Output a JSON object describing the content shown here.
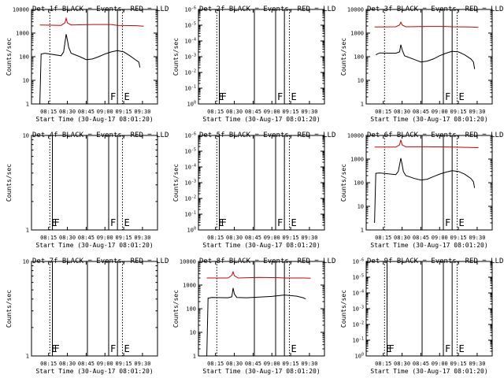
{
  "figure": {
    "x_range": [
      "08:01:20",
      "09:42:00"
    ],
    "x_ticks": [
      "08:15",
      "08:30",
      "08:45",
      "09:00",
      "09:15",
      "09:30"
    ],
    "xlabel": "Start Time (30-Aug-17 08:01:20)",
    "ylabel": "Counts/sec",
    "colors": {
      "events": "#000000",
      "lld": "#cc0000"
    }
  },
  "chart_data": [
    {
      "type": "line",
      "title": "Det 1f BLACK = Events, RED = LLD",
      "scale": "log",
      "ylim": [
        1,
        10000
      ],
      "y_ticks": [
        "1",
        "10",
        "100",
        "1000",
        "10000"
      ],
      "markers": [
        {
          "time": "08:16",
          "style": "dotted",
          "label": ""
        },
        {
          "time": "08:46",
          "style": "solid",
          "label": ""
        },
        {
          "time": "09:03",
          "style": "solid",
          "label": "F"
        },
        {
          "time": "09:10",
          "style": "solid",
          "label": ""
        },
        {
          "time": "09:14",
          "style": "dotted",
          "label": "E"
        }
      ],
      "series": [
        {
          "color": "lld",
          "points": [
            [
              "08:08",
              2200
            ],
            [
              "08:25",
              2100
            ],
            [
              "08:28",
              2700
            ],
            [
              "08:29",
              4200
            ],
            [
              "08:30",
              2700
            ],
            [
              "08:33",
              2200
            ],
            [
              "08:50",
              2300
            ],
            [
              "09:05",
              2300
            ],
            [
              "09:10",
              2100
            ],
            [
              "09:25",
              2050
            ],
            [
              "09:31",
              1950
            ]
          ]
        },
        {
          "color": "events",
          "points": [
            [
              "08:08",
              1
            ],
            [
              "08:09",
              130
            ],
            [
              "08:12",
              140
            ],
            [
              "08:25",
              110
            ],
            [
              "08:27",
              160
            ],
            [
              "08:29",
              900
            ],
            [
              "08:30",
              500
            ],
            [
              "08:31",
              250
            ],
            [
              "08:33",
              140
            ],
            [
              "08:40",
              100
            ],
            [
              "08:45",
              75
            ],
            [
              "08:50",
              80
            ],
            [
              "08:55",
              100
            ],
            [
              "09:00",
              130
            ],
            [
              "09:05",
              160
            ],
            [
              "09:10",
              180
            ],
            [
              "09:15",
              160
            ],
            [
              "09:20",
              110
            ],
            [
              "09:25",
              70
            ],
            [
              "09:27",
              60
            ],
            [
              "09:28",
              35
            ]
          ]
        }
      ]
    },
    {
      "type": "line",
      "title": "Det 2f BLACK = Events, RED = LLD",
      "scale": "log",
      "ylim": [
        1,
        1e-06
      ],
      "y_ticks": [
        "10^0",
        "10^-1",
        "10^-2",
        "10^-3",
        "10^-4",
        "10^-5",
        "10^-6"
      ],
      "markers": [
        {
          "time": "08:16",
          "style": "dotted",
          "label": "E"
        },
        {
          "time": "08:18",
          "style": "solid",
          "label": "F"
        },
        {
          "time": "08:46",
          "style": "solid",
          "label": ""
        },
        {
          "time": "09:03",
          "style": "solid",
          "label": "F"
        },
        {
          "time": "09:10",
          "style": "solid",
          "label": ""
        },
        {
          "time": "09:14",
          "style": "dotted",
          "label": "E"
        }
      ],
      "series": []
    },
    {
      "type": "line",
      "title": "Det 3f BLACK = Events, RED = LLD",
      "scale": "log",
      "ylim": [
        1,
        10000
      ],
      "y_ticks": [
        "1",
        "10",
        "100",
        "1000",
        "10000"
      ],
      "markers": [
        {
          "time": "08:16",
          "style": "dotted",
          "label": ""
        },
        {
          "time": "08:46",
          "style": "solid",
          "label": ""
        },
        {
          "time": "09:03",
          "style": "solid",
          "label": "F"
        },
        {
          "time": "09:10",
          "style": "solid",
          "label": ""
        },
        {
          "time": "09:14",
          "style": "dotted",
          "label": "E"
        }
      ],
      "series": [
        {
          "color": "lld",
          "points": [
            [
              "08:08",
              1800
            ],
            [
              "08:25",
              1850
            ],
            [
              "08:28",
              2200
            ],
            [
              "08:29",
              2900
            ],
            [
              "08:30",
              2200
            ],
            [
              "08:33",
              1850
            ],
            [
              "08:50",
              1900
            ],
            [
              "09:05",
              1900
            ],
            [
              "09:10",
              1850
            ],
            [
              "09:25",
              1800
            ],
            [
              "09:31",
              1750
            ]
          ]
        },
        {
          "color": "events",
          "points": [
            [
              "08:09",
              120
            ],
            [
              "08:12",
              145
            ],
            [
              "08:25",
              140
            ],
            [
              "08:28",
              160
            ],
            [
              "08:29",
              320
            ],
            [
              "08:30",
              200
            ],
            [
              "08:32",
              110
            ],
            [
              "08:40",
              75
            ],
            [
              "08:45",
              60
            ],
            [
              "08:50",
              65
            ],
            [
              "08:55",
              80
            ],
            [
              "09:00",
              110
            ],
            [
              "09:05",
              140
            ],
            [
              "09:10",
              170
            ],
            [
              "09:15",
              160
            ],
            [
              "09:20",
              120
            ],
            [
              "09:25",
              80
            ],
            [
              "09:27",
              60
            ],
            [
              "09:28",
              30
            ]
          ]
        }
      ]
    },
    {
      "type": "line",
      "title": "Det 4f BLACK = Events, RED = LLD",
      "scale": "log",
      "ylim": [
        1,
        10
      ],
      "y_ticks": [
        "1",
        "10"
      ],
      "markers": [
        {
          "time": "08:16",
          "style": "dotted",
          "label": "E"
        },
        {
          "time": "08:18",
          "style": "solid",
          "label": "F"
        },
        {
          "time": "08:46",
          "style": "solid",
          "label": ""
        },
        {
          "time": "09:03",
          "style": "solid",
          "label": "F"
        },
        {
          "time": "09:10",
          "style": "solid",
          "label": ""
        },
        {
          "time": "09:14",
          "style": "dotted",
          "label": "E"
        }
      ],
      "series": []
    },
    {
      "type": "line",
      "title": "Det 5f BLACK = Events, RED = LLD",
      "scale": "log",
      "ylim": [
        1,
        1e-06
      ],
      "y_ticks": [
        "10^0",
        "10^-1",
        "10^-2",
        "10^-3",
        "10^-4",
        "10^-5",
        "10^-6"
      ],
      "markers": [
        {
          "time": "08:16",
          "style": "dotted",
          "label": "E"
        },
        {
          "time": "08:18",
          "style": "solid",
          "label": "F"
        },
        {
          "time": "08:46",
          "style": "solid",
          "label": ""
        },
        {
          "time": "09:03",
          "style": "solid",
          "label": "F"
        },
        {
          "time": "09:10",
          "style": "solid",
          "label": ""
        },
        {
          "time": "09:14",
          "style": "dotted",
          "label": "E"
        }
      ],
      "series": []
    },
    {
      "type": "line",
      "title": "Det 6f BLACK = Events, RED = LLD",
      "scale": "log",
      "ylim": [
        1,
        10000
      ],
      "y_ticks": [
        "1",
        "10",
        "100",
        "1000",
        "10000"
      ],
      "markers": [
        {
          "time": "08:16",
          "style": "dotted",
          "label": ""
        },
        {
          "time": "08:46",
          "style": "solid",
          "label": ""
        },
        {
          "time": "09:03",
          "style": "solid",
          "label": "F"
        },
        {
          "time": "09:10",
          "style": "solid",
          "label": ""
        },
        {
          "time": "09:14",
          "style": "dotted",
          "label": "E"
        }
      ],
      "series": [
        {
          "color": "lld",
          "points": [
            [
              "08:08",
              3200
            ],
            [
              "08:25",
              3200
            ],
            [
              "08:28",
              4000
            ],
            [
              "08:29",
              6500
            ],
            [
              "08:30",
              4000
            ],
            [
              "08:33",
              3300
            ],
            [
              "08:50",
              3300
            ],
            [
              "09:05",
              3250
            ],
            [
              "09:10",
              3200
            ],
            [
              "09:25",
              3100
            ],
            [
              "09:31",
              3050
            ]
          ]
        },
        {
          "color": "events",
          "points": [
            [
              "08:08",
              2
            ],
            [
              "08:09",
              250
            ],
            [
              "08:12",
              260
            ],
            [
              "08:25",
              220
            ],
            [
              "08:27",
              300
            ],
            [
              "08:29",
              1100
            ],
            [
              "08:30",
              600
            ],
            [
              "08:31",
              300
            ],
            [
              "08:33",
              200
            ],
            [
              "08:40",
              150
            ],
            [
              "08:45",
              130
            ],
            [
              "08:50",
              140
            ],
            [
              "08:55",
              180
            ],
            [
              "09:00",
              230
            ],
            [
              "09:05",
              280
            ],
            [
              "09:10",
              320
            ],
            [
              "09:15",
              300
            ],
            [
              "09:20",
              230
            ],
            [
              "09:25",
              150
            ],
            [
              "09:27",
              110
            ],
            [
              "09:28",
              60
            ]
          ]
        }
      ]
    },
    {
      "type": "line",
      "title": "Det 7f BLACK = Events, RED = LLD",
      "scale": "log",
      "ylim": [
        1,
        10
      ],
      "y_ticks": [
        "1",
        "10"
      ],
      "markers": [
        {
          "time": "08:16",
          "style": "dotted",
          "label": "E"
        },
        {
          "time": "08:18",
          "style": "solid",
          "label": "F"
        },
        {
          "time": "08:46",
          "style": "solid",
          "label": ""
        },
        {
          "time": "09:03",
          "style": "solid",
          "label": "F"
        },
        {
          "time": "09:10",
          "style": "solid",
          "label": ""
        },
        {
          "time": "09:14",
          "style": "dotted",
          "label": "E"
        }
      ],
      "series": []
    },
    {
      "type": "line",
      "title": "Det 8f BLACK = Events, RED = LLD",
      "scale": "log",
      "ylim": [
        1,
        10000
      ],
      "y_ticks": [
        "1",
        "10",
        "100",
        "1000",
        "10000"
      ],
      "markers": [
        {
          "time": "08:16",
          "style": "dotted",
          "label": ""
        },
        {
          "time": "08:46",
          "style": "solid",
          "label": ""
        },
        {
          "time": "09:03",
          "style": "solid",
          "label": ""
        },
        {
          "time": "09:10",
          "style": "solid",
          "label": ""
        },
        {
          "time": "09:14",
          "style": "dotted",
          "label": "E"
        }
      ],
      "series": [
        {
          "color": "lld",
          "points": [
            [
              "08:08",
              2000
            ],
            [
              "08:25",
              2000
            ],
            [
              "08:28",
              2600
            ],
            [
              "08:29",
              3600
            ],
            [
              "08:30",
              2500
            ],
            [
              "08:33",
              2000
            ],
            [
              "08:50",
              2100
            ],
            [
              "09:05",
              2050
            ],
            [
              "09:10",
              2000
            ],
            [
              "09:25",
              2000
            ],
            [
              "09:31",
              1950
            ]
          ]
        },
        {
          "color": "events",
          "points": [
            [
              "08:08",
              1
            ],
            [
              "08:09",
              280
            ],
            [
              "08:12",
              300
            ],
            [
              "08:25",
              290
            ],
            [
              "08:28",
              320
            ],
            [
              "08:29",
              750
            ],
            [
              "08:30",
              420
            ],
            [
              "08:32",
              300
            ],
            [
              "08:40",
              290
            ],
            [
              "08:50",
              310
            ],
            [
              "09:00",
              330
            ],
            [
              "09:10",
              380
            ],
            [
              "09:20",
              340
            ],
            [
              "09:25",
              290
            ],
            [
              "09:27",
              260
            ]
          ]
        }
      ]
    },
    {
      "type": "line",
      "title": "Det 9f BLACK = Events, RED = LLD",
      "scale": "log",
      "ylim": [
        1,
        1e-06
      ],
      "y_ticks": [
        "10^0",
        "10^-1",
        "10^-2",
        "10^-3",
        "10^-4",
        "10^-5",
        "10^-6"
      ],
      "markers": [
        {
          "time": "08:16",
          "style": "dotted",
          "label": "E"
        },
        {
          "time": "08:18",
          "style": "solid",
          "label": "F"
        },
        {
          "time": "08:46",
          "style": "solid",
          "label": ""
        },
        {
          "time": "09:03",
          "style": "solid",
          "label": "F"
        },
        {
          "time": "09:10",
          "style": "solid",
          "label": ""
        },
        {
          "time": "09:14",
          "style": "dotted",
          "label": "E"
        }
      ],
      "series": []
    }
  ]
}
